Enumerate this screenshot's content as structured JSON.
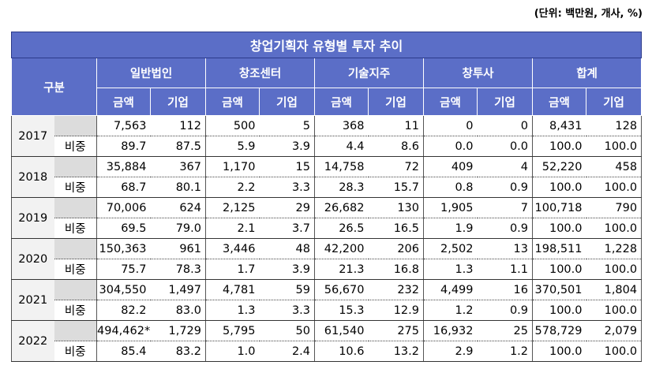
{
  "unit_note": "(단위: 백만원, 개사, %)",
  "table": {
    "title": "창업기획자 유형별 투자 추이",
    "row_header": "구분",
    "categories": [
      "일반법인",
      "창조센터",
      "기술지주",
      "창투사",
      "합계"
    ],
    "sub_headers": [
      "금액",
      "기업"
    ],
    "ratio_label": "비중",
    "rows": [
      {
        "year": "2017",
        "values": [
          "7,563",
          "112",
          "500",
          "5",
          "368",
          "11",
          "0",
          "0",
          "8,431",
          "128"
        ],
        "ratios": [
          "89.7",
          "87.5",
          "5.9",
          "3.9",
          "4.4",
          "8.6",
          "0.0",
          "0.0",
          "100.0",
          "100.0"
        ]
      },
      {
        "year": "2018",
        "values": [
          "35,884",
          "367",
          "1,170",
          "15",
          "14,758",
          "72",
          "409",
          "4",
          "52,220",
          "458"
        ],
        "ratios": [
          "68.7",
          "80.1",
          "2.2",
          "3.3",
          "28.3",
          "15.7",
          "0.8",
          "0.9",
          "100.0",
          "100.0"
        ]
      },
      {
        "year": "2019",
        "values": [
          "70,006",
          "624",
          "2,125",
          "29",
          "26,682",
          "130",
          "1,905",
          "7",
          "100,718",
          "790"
        ],
        "ratios": [
          "69.5",
          "79.0",
          "2.1",
          "3.7",
          "26.5",
          "16.5",
          "1.9",
          "0.9",
          "100.0",
          "100.0"
        ]
      },
      {
        "year": "2020",
        "values": [
          "150,363",
          "961",
          "3,446",
          "48",
          "42,200",
          "206",
          "2,502",
          "13",
          "198,511",
          "1,228"
        ],
        "ratios": [
          "75.7",
          "78.3",
          "1.7",
          "3.9",
          "21.3",
          "16.8",
          "1.3",
          "1.1",
          "100.0",
          "100.0"
        ]
      },
      {
        "year": "2021",
        "values": [
          "304,550",
          "1,497",
          "4,781",
          "59",
          "56,670",
          "232",
          "4,499",
          "16",
          "370,501",
          "1,804"
        ],
        "ratios": [
          "82.2",
          "83.0",
          "1.3",
          "3.3",
          "15.3",
          "12.9",
          "1.2",
          "0.9",
          "100.0",
          "100.0"
        ]
      },
      {
        "year": "2022",
        "values": [
          "494,462*",
          "1,729",
          "5,795",
          "50",
          "61,540",
          "275",
          "16,932",
          "25",
          "578,729",
          "2,079"
        ],
        "ratios": [
          "85.4",
          "83.2",
          "1.0",
          "2.4",
          "10.6",
          "13.2",
          "2.9",
          "1.2",
          "100.0",
          "100.0"
        ]
      }
    ]
  }
}
